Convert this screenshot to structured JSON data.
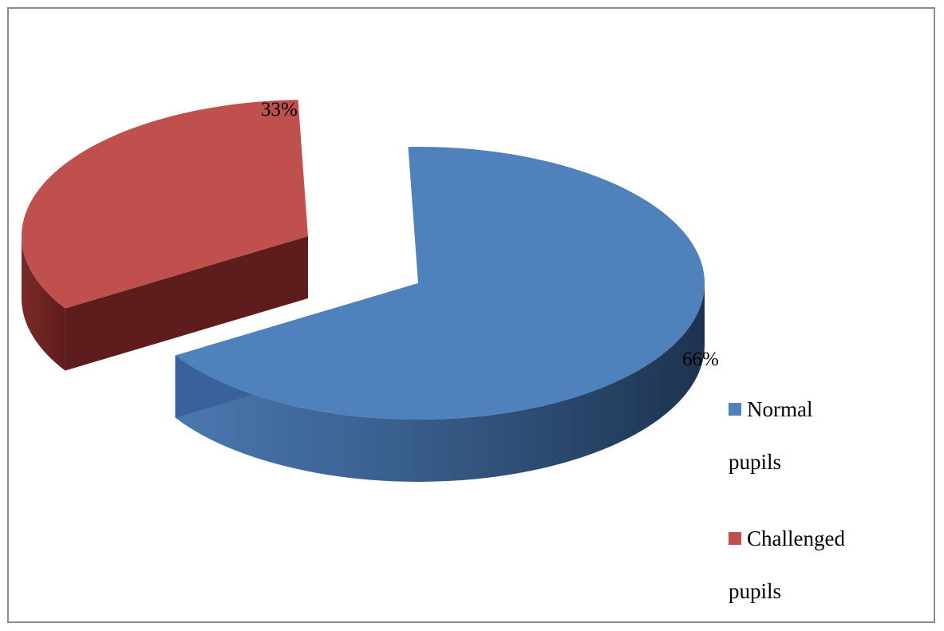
{
  "chart_data": {
    "type": "pie",
    "style": "3d-exploded",
    "categories": [
      "Normal pupils",
      "Challenged pupils"
    ],
    "values": [
      66,
      33
    ],
    "data_labels": [
      "66%",
      "33%"
    ],
    "colors": [
      "#4f81bd",
      "#c0504d"
    ],
    "legend": {
      "placement": "right",
      "entries": [
        {
          "line1": "Normal",
          "line2": "pupils",
          "color": "#4f81bd"
        },
        {
          "line1": "Challenged",
          "line2": "pupils",
          "color": "#c0504d"
        }
      ]
    }
  }
}
